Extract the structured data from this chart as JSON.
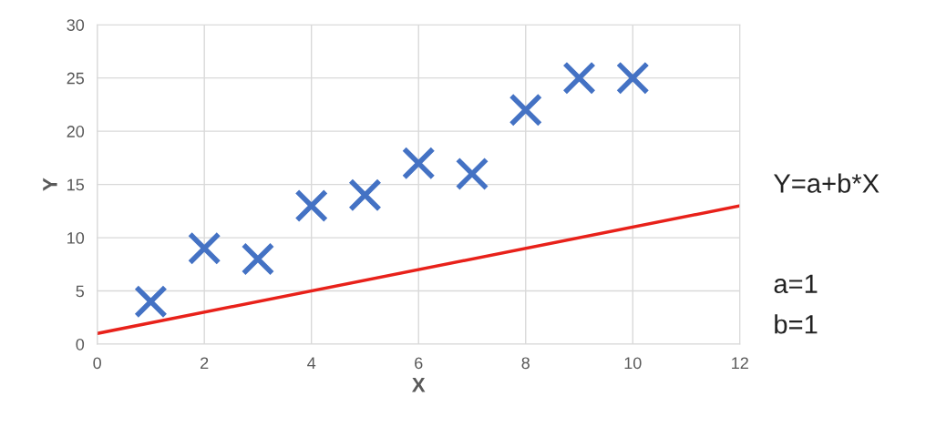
{
  "chart_data": {
    "type": "scatter",
    "xlabel": "X",
    "ylabel": "Y",
    "xlim": [
      0,
      12
    ],
    "xticks": [
      0,
      2,
      4,
      6,
      8,
      10,
      12
    ],
    "ylim": [
      0,
      30
    ],
    "yticks": [
      0,
      5,
      10,
      15,
      20,
      25,
      30
    ],
    "grid": true,
    "legend": false,
    "annotations": [
      "Y=a+b*X",
      "a=1",
      "b=1"
    ],
    "series": [
      {
        "color": "#4472c4",
        "marker": "cross",
        "x": [
          1,
          2,
          3,
          4,
          5,
          6,
          7,
          8,
          9,
          10
        ],
        "values": [
          4,
          9,
          8,
          13,
          14,
          17,
          16,
          22,
          25,
          25
        ]
      },
      {
        "type": "line",
        "color": "#e8211a",
        "marker": "none",
        "line_style": "solid",
        "x": [
          0,
          12
        ],
        "values": [
          1,
          13
        ]
      }
    ]
  }
}
